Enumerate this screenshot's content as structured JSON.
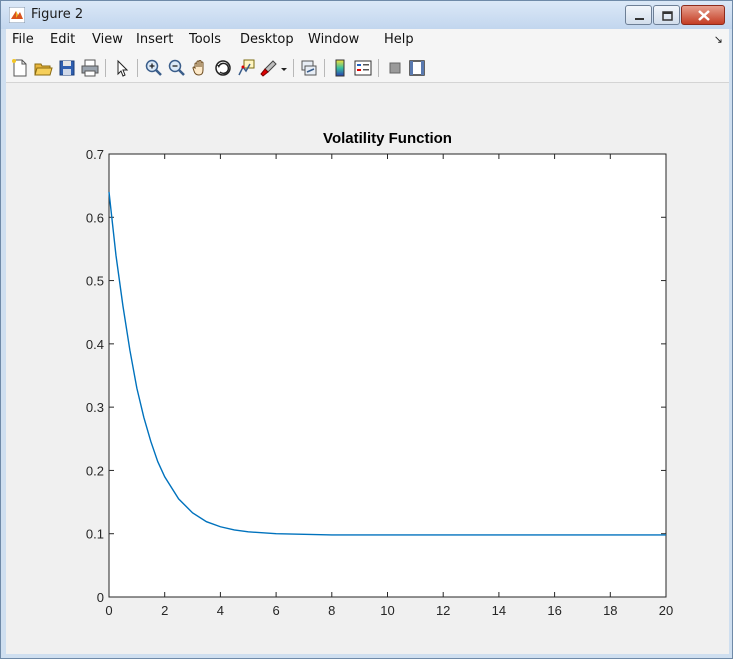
{
  "window": {
    "title": "Figure 2",
    "buttons": {
      "minimize": "minimize",
      "maximize": "maximize",
      "close": "close"
    }
  },
  "menu": {
    "items": [
      "File",
      "Edit",
      "View",
      "Insert",
      "Tools",
      "Desktop",
      "Window",
      "Help"
    ],
    "overflow_arrow": "↘"
  },
  "toolbar": {
    "items": [
      "new-figure-icon",
      "open-file-icon",
      "save-icon",
      "print-icon",
      "pointer-icon",
      "zoom-in-icon",
      "zoom-out-icon",
      "pan-icon",
      "rotate-3d-icon",
      "data-cursor-icon",
      "brush-icon",
      "link-plot-icon",
      "colorbar-icon",
      "legend-icon",
      "hide-plot-tools-icon",
      "show-plot-tools-icon"
    ]
  },
  "chart_data": {
    "type": "line",
    "title": "Volatility Function",
    "xlabel": "",
    "ylabel": "",
    "xlim": [
      0,
      20
    ],
    "ylim": [
      0,
      0.7
    ],
    "xticks": [
      "0",
      "2",
      "4",
      "6",
      "8",
      "10",
      "12",
      "14",
      "16",
      "18",
      "20"
    ],
    "yticks": [
      "0",
      "0.1",
      "0.2",
      "0.3",
      "0.4",
      "0.5",
      "0.6",
      "0.7"
    ],
    "grid": false,
    "line_color": "#0072bd",
    "series": [
      {
        "x": [
          0,
          0.25,
          0.5,
          0.75,
          1,
          1.25,
          1.5,
          1.75,
          2,
          2.5,
          3,
          3.5,
          4,
          4.5,
          5,
          6,
          7,
          8,
          10,
          12,
          14,
          16,
          18,
          20
        ],
        "values": [
          0.64,
          0.54,
          0.46,
          0.39,
          0.33,
          0.284,
          0.246,
          0.214,
          0.19,
          0.155,
          0.133,
          0.119,
          0.111,
          0.106,
          0.103,
          0.1,
          0.099,
          0.098,
          0.098,
          0.098,
          0.098,
          0.098,
          0.098,
          0.098
        ]
      }
    ]
  }
}
